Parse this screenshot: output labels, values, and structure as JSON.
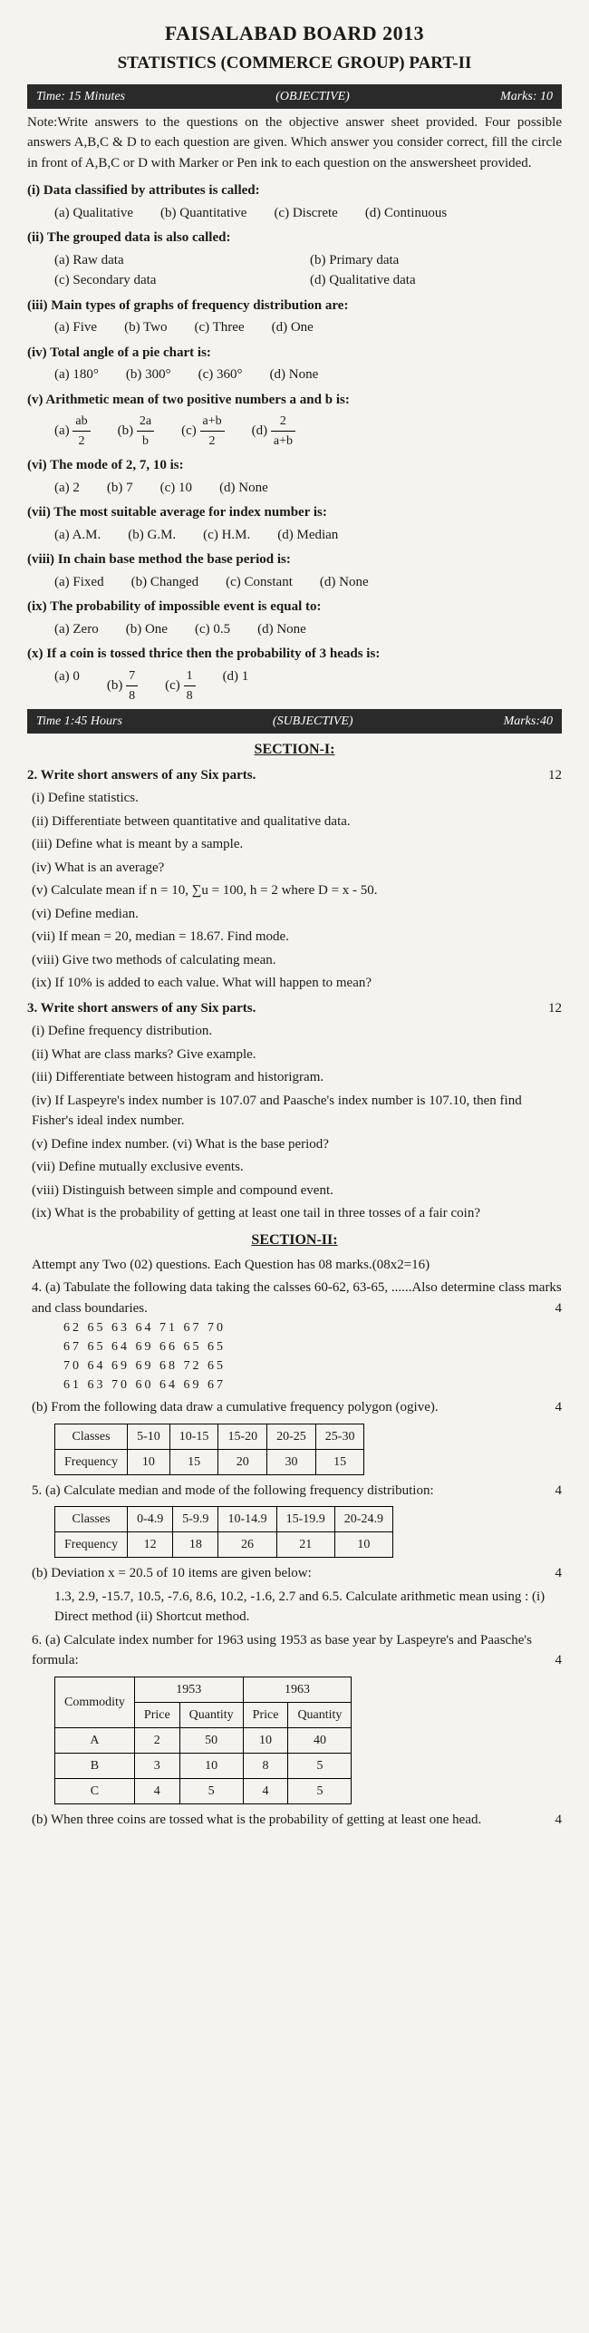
{
  "header": {
    "title": "FAISALABAD BOARD 2013",
    "sub": "STATISTICS (COMMERCE GROUP) PART-II"
  },
  "obj_bar": {
    "time": "Time: 15 Minutes",
    "label": "(OBJECTIVE)",
    "marks": "Marks: 10"
  },
  "note": "Note:Write answers to the questions on the objective answer sheet provided. Four possible answers A,B,C & D to each question are given. Which answer you consider correct, fill the circle in front of A,B,C or D with Marker or Pen ink to each question on the answersheet provided.",
  "mcq": [
    {
      "n": "(i)",
      "t": "Data classified by attributes is called:",
      "o": [
        "(a)   Qualitative",
        "(b)   Quantitative",
        "(c)    Discrete",
        "(d)   Continuous"
      ]
    },
    {
      "n": "(ii)",
      "t": "The grouped data is also called:",
      "o": [
        "(a)    Raw data",
        "(b)    Primary data",
        "(c)    Secondary data",
        "(d)    Qualitative data"
      ],
      "twocol": true
    },
    {
      "n": "(iii)",
      "t": "Main types of graphs of frequency distribution are:",
      "o": [
        "(a)   Five",
        "(b)   Two",
        "(c)    Three",
        "(d)   One"
      ]
    },
    {
      "n": "(iv)",
      "t": "Total angle of a pie chart is:",
      "o": [
        "(a)    180°",
        "(b)   300°",
        "(c)    360°",
        "(d)   None"
      ]
    },
    {
      "n": "(v)",
      "t": "Arithmetic mean of two positive numbers a and b is:",
      "frac": true,
      "o": [
        [
          "ab",
          "2"
        ],
        [
          "2a",
          "b"
        ],
        [
          "a+b",
          "2"
        ],
        [
          "2",
          "a+b"
        ]
      ]
    },
    {
      "n": "(vi)",
      "t": "The mode of 2, 7, 10 is:",
      "o": [
        "(a)   2",
        "(b)   7",
        "(c)    10",
        "(d)   None"
      ]
    },
    {
      "n": "(vii)",
      "t": "The most suitable average for index number is:",
      "o": [
        "(a)   A.M.",
        "(b)   G.M.",
        "(c)    H.M.",
        "(d)   Median"
      ]
    },
    {
      "n": "(viii)",
      "t": "In chain base method the base period is:",
      "o": [
        "(a)   Fixed",
        "(b)   Changed",
        "(c)   Constant",
        "(d)   None"
      ]
    },
    {
      "n": "(ix)",
      "t": "The probability of impossible event is equal to:",
      "o": [
        "(a)   Zero",
        "(b)   One",
        "(c)   0.5",
        "(d)   None"
      ]
    },
    {
      "n": "(x)",
      "t": "If a coin is tossed thrice then the probability of 3 heads is:",
      "frac2": true,
      "o": [
        "0",
        [
          "7",
          "8"
        ],
        [
          "1",
          "8"
        ],
        "1"
      ]
    }
  ],
  "subj_bar": {
    "time": "Time 1:45 Hours",
    "label": "(SUBJECTIVE)",
    "marks": "Marks:40"
  },
  "sec1_title": "SECTION-I:",
  "q2": {
    "t": "2.    Write short answers of any Six parts.",
    "m": "12"
  },
  "s1a": [
    "(i)    Define statistics.",
    "(ii)   Differentiate between quantitative and qualitative data.",
    "(iii)  Define what is meant by a sample.",
    "(iv)  What is an average?",
    "(v)   Calculate mean if  n = 10, ∑u = 100, h = 2  where D = x - 50.",
    "(vi)  Define median.",
    "(vii) If mean = 20, median = 18.67. Find mode.",
    "(viii) Give two methods of calculating mean.",
    "(ix)  If 10% is added to each value. What will happen to mean?"
  ],
  "q3": {
    "t": "3.    Write short answers of any Six parts.",
    "m": "12"
  },
  "s1b": [
    "(i)    Define frequency distribution.",
    "(ii)   What are class marks? Give example.",
    "(iii)  Differentiate between histogram and historigram.",
    "(iv)  If Laspeyre's index number is 107.07 and Paasche's index number is 107.10, then find Fisher's ideal index number.",
    "(v)   Define index number.            (vi)   What is the base period?",
    "(vii) Define mutually exclusive events.",
    "(viii) Distinguish between simple and compound event.",
    "(ix)  What is the probability of getting at least one tail in three tosses of a fair coin?"
  ],
  "sec2_title": "SECTION-II:",
  "sec2_intro": "Attempt any Two (02) questions. Each Question has 08 marks.(08x2=16)",
  "q4a": {
    "t": "4. (a) Tabulate the following data taking the calsses 60-62, 63-65, ......Also determine class marks and class boundaries.",
    "m": "4"
  },
  "data4": [
    [
      "62",
      "65",
      "63",
      "64",
      "71",
      "67",
      "70"
    ],
    [
      "67",
      "65",
      "64",
      "69",
      "66",
      "65",
      "65"
    ],
    [
      "70",
      "64",
      "69",
      "69",
      "68",
      "72",
      "65"
    ],
    [
      "61",
      "63",
      "70",
      "60",
      "64",
      "69",
      "67"
    ]
  ],
  "q4b": {
    "t": "(b) From the following data draw a cumulative frequency polygon (ogive).",
    "m": "4"
  },
  "t4b": {
    "h": [
      "Classes",
      "5-10",
      "10-15",
      "15-20",
      "20-25",
      "25-30"
    ],
    "r": [
      "Frequency",
      "10",
      "15",
      "20",
      "30",
      "15"
    ]
  },
  "q5a": {
    "t": "5. (a) Calculate median and mode of the following frequency distribution:",
    "m": "4"
  },
  "t5a": {
    "h": [
      "Classes",
      "0-4.9",
      "5-9.9",
      "10-14.9",
      "15-19.9",
      "20-24.9"
    ],
    "r": [
      "Frequency",
      "12",
      "18",
      "26",
      "21",
      "10"
    ]
  },
  "q5b": {
    "t": "(b) Deviation x = 20.5 of 10 items are given below:",
    "m": "4"
  },
  "q5b_data": "1.3, 2.9, -15.7,  10.5, -7.6, 8.6, 10.2,  -1.6,  2.7 and 6.5. Calculate arithmetic mean using :    (i) Direct method      (ii) Shortcut method.",
  "q6a": {
    "t": "6. (a) Calculate index number for 1963 using 1953 as base year by Laspeyre's and Paasche's formula:",
    "m": "4"
  },
  "t6": {
    "years": [
      "1953",
      "1963"
    ],
    "cols": [
      "Price",
      "Quantity",
      "Price",
      "Quantity"
    ],
    "rows": [
      [
        "A",
        "2",
        "50",
        "10",
        "40"
      ],
      [
        "B",
        "3",
        "10",
        "8",
        "5"
      ],
      [
        "C",
        "4",
        "5",
        "4",
        "5"
      ]
    ]
  },
  "q6b": {
    "t": "(b) When three coins are tossed what is the probability of getting at least one head.",
    "m": "4"
  }
}
